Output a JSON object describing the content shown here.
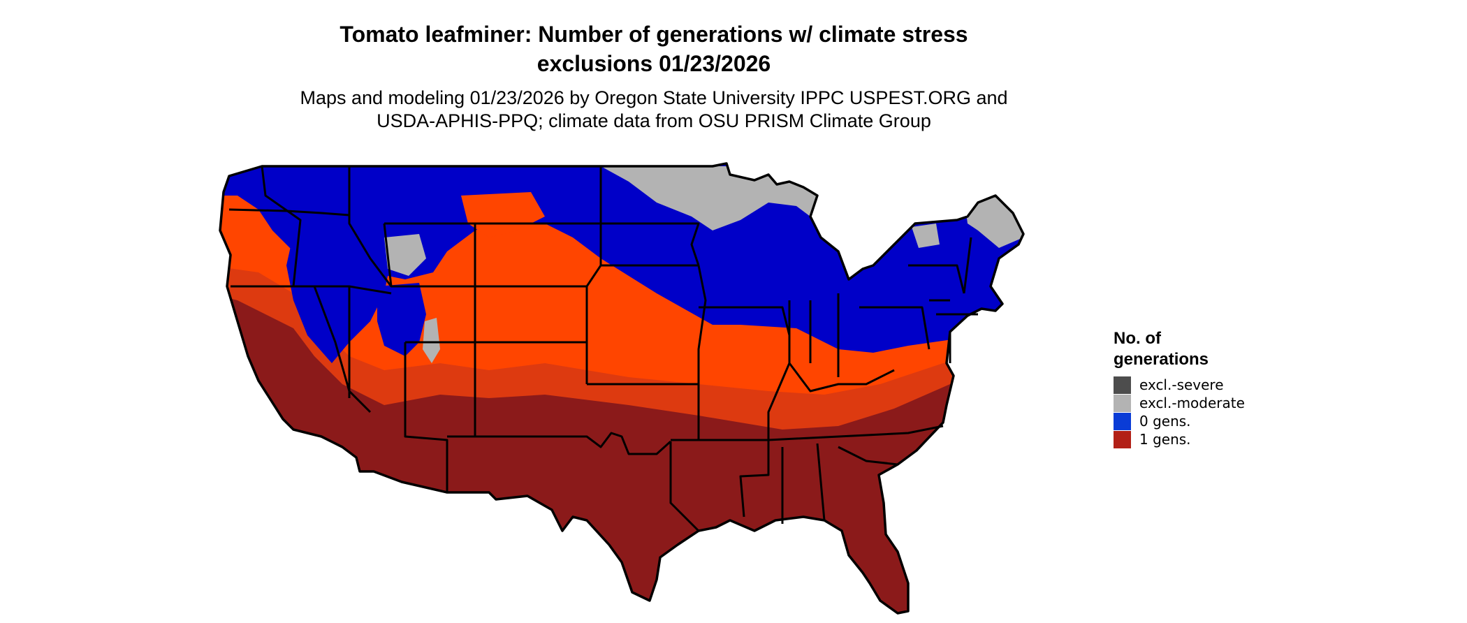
{
  "title_line1": "Tomato leafminer: Number of generations w/ climate stress",
  "title_line2": "exclusions 01/23/2026",
  "subtitle_line1": "Maps and modeling 01/23/2026 by Oregon State University IPPC USPEST.ORG and",
  "subtitle_line2": "USDA-APHIS-PPQ; climate data from OSU PRISM Climate Group",
  "legend": {
    "title_line1": "No. of",
    "title_line2": "generations",
    "items": [
      {
        "label": "excl.-severe",
        "color": "#4d4d4d"
      },
      {
        "label": "excl.-moderate",
        "color": "#b3b3b3"
      },
      {
        "label": "0 gens.",
        "color": "#0a3cd6"
      },
      {
        "label": "1 gens.",
        "color": "#b22017"
      }
    ]
  },
  "map_colors": {
    "excl_moderate": "#b3b3b3",
    "zero_gens": "#0000c8",
    "one_gens_orange": "#ff4500",
    "one_gens_mid": "#dd3a10",
    "one_gens_dark": "#8b1a1a",
    "boundary": "#000000"
  }
}
